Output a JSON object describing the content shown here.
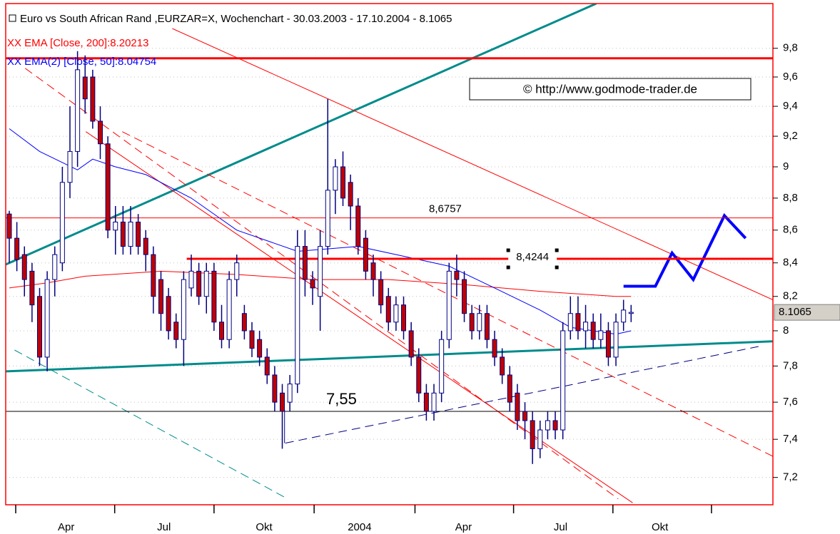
{
  "chart_data": {
    "type": "candlestick",
    "title": "Euro vs South African Rand ,EURZAR=X, Wochenchart - 30.03.2003 - 17.10.2004 - 8.1065",
    "watermark": "© http://www.godmode-trader.de",
    "log_scale": true,
    "grid": true,
    "ylim": [
      7.06,
      10.12
    ],
    "yticks": [
      {
        "value": 7.2,
        "label": "7,2"
      },
      {
        "value": 7.4,
        "label": "7,4"
      },
      {
        "value": 7.6,
        "label": "7,6"
      },
      {
        "value": 7.8,
        "label": "7,8"
      },
      8,
      {
        "value": 8.2,
        "label": "8,2"
      },
      {
        "value": 8.4,
        "label": "8,4"
      },
      {
        "value": 8.6,
        "label": "8,6"
      },
      {
        "value": 8.8,
        "label": "8,8"
      },
      9,
      {
        "value": 9.2,
        "label": "9,2"
      },
      {
        "value": 9.4,
        "label": "9,4"
      },
      {
        "value": 9.6,
        "label": "9,6"
      },
      {
        "value": 9.8,
        "label": "9,8"
      }
    ],
    "xlim": [
      -0.47,
      100.7
    ],
    "xticks": [
      0.85,
      13.9,
      27.0,
      40.2,
      53.5,
      66.5,
      79.6,
      92.6
    ],
    "xlabels": [
      {
        "value": 7.5,
        "label": "Apr"
      },
      {
        "value": 20.4,
        "label": "Jul"
      },
      {
        "value": 33.6,
        "label": "Okt"
      },
      {
        "value": 46.2,
        "label": "2004"
      },
      {
        "value": 59.9,
        "label": "Apr"
      },
      {
        "value": 72.7,
        "label": "Jul"
      },
      {
        "value": 85.8,
        "label": "Okt"
      }
    ],
    "up_color": "#ffffff",
    "down_color": "#c00000",
    "wick_color": "#000080",
    "candles": [
      [
        8.7,
        8.72,
        8.4,
        8.55
      ],
      [
        8.55,
        8.65,
        8.35,
        8.42
      ],
      [
        8.45,
        8.5,
        8.2,
        8.3
      ],
      [
        8.35,
        8.4,
        8.05,
        8.15
      ],
      [
        8.2,
        8.25,
        7.8,
        7.85
      ],
      [
        7.85,
        8.35,
        7.77,
        8.3
      ],
      [
        8.3,
        8.5,
        8.2,
        8.45
      ],
      [
        8.4,
        9.0,
        8.35,
        8.9
      ],
      [
        8.9,
        9.4,
        8.8,
        9.1
      ],
      [
        9.1,
        9.78,
        9.0,
        9.65
      ],
      [
        9.6,
        9.75,
        9.35,
        9.45
      ],
      [
        9.6,
        9.65,
        9.25,
        9.3
      ],
      [
        9.3,
        9.4,
        9.05,
        9.15
      ],
      [
        9.15,
        9.2,
        8.55,
        8.6
      ],
      [
        8.6,
        8.75,
        8.45,
        8.65
      ],
      [
        8.65,
        8.75,
        8.45,
        8.5
      ],
      [
        8.5,
        8.75,
        8.45,
        8.65
      ],
      [
        8.65,
        8.7,
        8.45,
        8.5
      ],
      [
        8.55,
        8.6,
        8.35,
        8.45
      ],
      [
        8.45,
        8.5,
        8.1,
        8.2
      ],
      [
        8.3,
        8.35,
        8.0,
        8.1
      ],
      [
        8.2,
        8.25,
        7.95,
        8.0
      ],
      [
        8.05,
        8.1,
        7.9,
        7.95
      ],
      [
        7.95,
        8.35,
        7.8,
        8.3
      ],
      [
        8.25,
        8.45,
        8.2,
        8.35
      ],
      [
        8.35,
        8.4,
        8.15,
        8.2
      ],
      [
        8.2,
        8.4,
        8.1,
        8.35
      ],
      [
        8.35,
        8.4,
        8.0,
        8.05
      ],
      [
        8.05,
        8.15,
        7.9,
        7.95
      ],
      [
        7.95,
        8.35,
        7.9,
        8.3
      ],
      [
        8.3,
        8.45,
        8.2,
        8.4
      ],
      [
        8.1,
        8.15,
        7.95,
        8.0
      ],
      [
        8.0,
        8.05,
        7.85,
        7.9
      ],
      [
        7.95,
        8.0,
        7.8,
        7.85
      ],
      [
        7.85,
        7.9,
        7.7,
        7.75
      ],
      [
        7.75,
        7.8,
        7.55,
        7.6
      ],
      [
        7.65,
        7.7,
        7.35,
        7.55
      ],
      [
        7.6,
        7.75,
        7.55,
        7.7
      ],
      [
        7.7,
        8.6,
        7.65,
        8.5
      ],
      [
        8.5,
        8.6,
        8.2,
        8.3
      ],
      [
        8.3,
        8.35,
        8.15,
        8.25
      ],
      [
        8.2,
        8.6,
        8.0,
        8.5
      ],
      [
        8.5,
        9.45,
        8.45,
        8.85
      ],
      [
        8.85,
        9.05,
        8.7,
        9.0
      ],
      [
        9.0,
        9.1,
        8.75,
        8.8
      ],
      [
        8.9,
        8.95,
        8.6,
        8.75
      ],
      [
        8.75,
        8.8,
        8.45,
        8.5
      ],
      [
        8.55,
        8.6,
        8.3,
        8.35
      ],
      [
        8.4,
        8.45,
        8.2,
        8.3
      ],
      [
        8.3,
        8.35,
        8.1,
        8.15
      ],
      [
        8.2,
        8.25,
        8.0,
        8.05
      ],
      [
        8.05,
        8.2,
        8.0,
        8.15
      ],
      [
        8.15,
        8.2,
        7.95,
        8.0
      ],
      [
        8.0,
        8.05,
        7.8,
        7.85
      ],
      [
        7.85,
        7.9,
        7.6,
        7.65
      ],
      [
        7.65,
        7.7,
        7.5,
        7.55
      ],
      [
        7.55,
        7.7,
        7.5,
        7.65
      ],
      [
        7.65,
        8.0,
        7.6,
        7.95
      ],
      [
        7.95,
        8.4,
        7.9,
        8.35
      ],
      [
        8.35,
        8.45,
        8.2,
        8.3
      ],
      [
        8.3,
        8.35,
        8.05,
        8.1
      ],
      [
        8.1,
        8.15,
        7.95,
        8.0
      ],
      [
        8.0,
        8.15,
        7.95,
        8.1
      ],
      [
        8.1,
        8.15,
        7.9,
        7.95
      ],
      [
        7.95,
        8.0,
        7.8,
        7.85
      ],
      [
        7.85,
        7.9,
        7.7,
        7.75
      ],
      [
        7.75,
        7.8,
        7.55,
        7.6
      ],
      [
        7.65,
        7.7,
        7.45,
        7.5
      ],
      [
        7.55,
        7.6,
        7.4,
        7.5
      ],
      [
        7.5,
        7.55,
        7.27,
        7.35
      ],
      [
        7.35,
        7.5,
        7.3,
        7.45
      ],
      [
        7.45,
        7.55,
        7.4,
        7.5
      ],
      [
        7.5,
        7.55,
        7.4,
        7.45
      ],
      [
        7.45,
        8.05,
        7.4,
        8.0
      ],
      [
        8.0,
        8.2,
        7.95,
        8.1
      ],
      [
        8.1,
        8.2,
        7.95,
        8.0
      ],
      [
        8.0,
        8.15,
        7.9,
        8.05
      ],
      [
        8.05,
        8.1,
        7.9,
        7.95
      ],
      [
        7.95,
        8.1,
        7.9,
        8.0
      ],
      [
        8.0,
        8.05,
        7.8,
        7.85
      ],
      [
        7.85,
        8.1,
        7.8,
        8.05
      ],
      [
        8.05,
        8.18,
        8.0,
        8.12
      ],
      [
        8.1,
        8.15,
        8.05,
        8.1065
      ]
    ],
    "last": 8.1065,
    "series": [
      {
        "name": "XX EMA [Close, 200]:8.20213",
        "color": "#ff0000",
        "x": [
          0,
          5,
          10,
          20,
          30,
          40,
          50,
          60,
          70,
          80,
          82
        ],
        "values": [
          8.25,
          8.28,
          8.32,
          8.35,
          8.33,
          8.3,
          8.3,
          8.27,
          8.23,
          8.2,
          8.2
        ]
      },
      {
        "name": "XX EMA(2) [Close, 50]:8.04754",
        "color": "#0000ff",
        "x": [
          0,
          4,
          9,
          11,
          14,
          18,
          24,
          30,
          38,
          46,
          52,
          58,
          64,
          70,
          74,
          80,
          82
        ],
        "values": [
          9.25,
          9.1,
          8.98,
          9.05,
          9.0,
          8.95,
          8.8,
          8.6,
          8.47,
          8.5,
          8.44,
          8.38,
          8.25,
          8.12,
          8.02,
          7.98,
          8.0
        ]
      }
    ],
    "levels": [
      {
        "value": 9.73,
        "from": -0.47,
        "to": 100.7,
        "color": "#ff0000",
        "style": "thick"
      },
      {
        "value": 8.6757,
        "label": "8,6757",
        "from": -0.47,
        "to": 100.7,
        "color": "#ff0000",
        "style": "thin"
      },
      {
        "value": 8.4244,
        "label": "8,4244",
        "from": 23.4,
        "to": 100.7,
        "color": "#ff0000",
        "style": "thick"
      },
      {
        "value": 7.55,
        "label": "7,55",
        "from": -0.47,
        "to": 100.7,
        "color": "#000000",
        "style": "thin"
      }
    ],
    "drawings": [
      {
        "x": [
          -0.47,
          77.4
        ],
        "values": [
          8.39,
          10.12
        ],
        "color": "#008b8b",
        "style": "thick"
      },
      {
        "x": [
          -0.47,
          100.7
        ],
        "values": [
          7.77,
          7.94
        ],
        "color": "#008b8b",
        "style": "thick"
      },
      {
        "x": [
          21.5,
          100.7
        ],
        "values": [
          9.94,
          8.18
        ],
        "color": "#ff0000",
        "style": "thin"
      },
      {
        "x": [
          10.1,
          82.2
        ],
        "values": [
          9.23,
          7.07
        ],
        "color": "#ff0000",
        "style": "thin"
      },
      {
        "x": [
          2.1,
          80.3
        ],
        "values": [
          9.66,
          7.09
        ],
        "color": "#ff0000",
        "style": "dashed"
      },
      {
        "x": [
          14.9,
          100.7
        ],
        "values": [
          9.23,
          7.31
        ],
        "color": "#ff0000",
        "style": "dashed"
      },
      {
        "x": [
          36.3,
          36.3
        ],
        "values": [
          7.56,
          7.38
        ],
        "color": "#000080",
        "style": "thin"
      },
      {
        "x": [
          36.4,
          98.8
        ],
        "values": [
          7.38,
          7.91
        ],
        "color": "#000080",
        "style": "dashed"
      },
      {
        "x": [
          0.7,
          36.7
        ],
        "values": [
          7.89,
          7.09
        ],
        "color": "#008b8b",
        "style": "dashed"
      },
      {
        "x": [
          81.0,
          85.2,
          87.4,
          90.2,
          94.3,
          97.1
        ],
        "values": [
          8.26,
          8.26,
          8.46,
          8.3,
          8.69,
          8.55
        ],
        "color": "#0000ff",
        "style": "bold"
      }
    ]
  }
}
